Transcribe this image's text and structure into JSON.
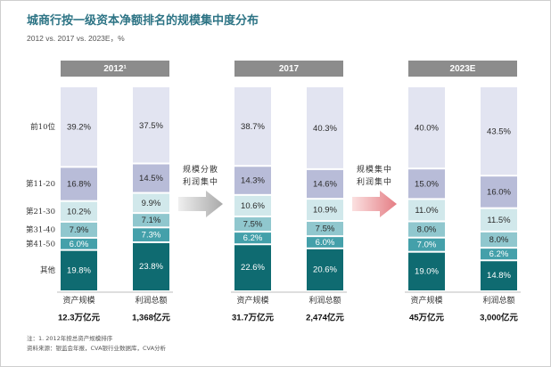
{
  "chart_data": {
    "type": "bar",
    "stacked": true,
    "title": "城商行按一级资本净额排名的规模集中度分布",
    "subtitle": "2012 vs. 2017 vs. 2023E，%",
    "unit": "%",
    "ylim": [
      0,
      100
    ],
    "grid": false,
    "groups": [
      "2012¹",
      "2017",
      "2023E"
    ],
    "categories": [
      "资产规模",
      "利润总额",
      "资产规模",
      "利润总额",
      "资产规模",
      "利润总额"
    ],
    "category_totals": [
      "12.3万亿元",
      "1,368亿元",
      "31.7万亿元",
      "2,474亿元",
      "45万亿元",
      "3,000亿元"
    ],
    "series": [
      {
        "name": "前10位",
        "values": [
          39.2,
          37.5,
          38.7,
          40.3,
          40.0,
          43.5
        ]
      },
      {
        "name": "第11-20",
        "values": [
          16.8,
          14.5,
          14.3,
          14.6,
          15.0,
          16.0
        ]
      },
      {
        "name": "第21-30",
        "values": [
          10.2,
          9.9,
          10.6,
          10.9,
          11.0,
          11.5
        ]
      },
      {
        "name": "第31-40",
        "values": [
          7.9,
          7.1,
          7.5,
          7.5,
          8.0,
          8.0
        ]
      },
      {
        "name": "第41-50",
        "values": [
          6.0,
          7.3,
          6.2,
          6.0,
          7.0,
          6.2
        ]
      },
      {
        "name": "其他",
        "values": [
          19.8,
          23.8,
          22.6,
          20.6,
          19.0,
          14.8
        ]
      }
    ],
    "annotations": [
      {
        "lines": [
          "规模分散",
          "利润集中"
        ],
        "arrow_colors": [
          "#efefef",
          "#a9a9a9"
        ]
      },
      {
        "lines": [
          "规模集中",
          "利润集中"
        ],
        "arrow_colors": [
          "#fbe1e1",
          "#e47d84"
        ]
      }
    ]
  },
  "footnotes": [
    "注：1. 2012年按总资产规模排序",
    "资料来源：银监会年报，CVA银行业数据库，CVA分析"
  ],
  "colors": {
    "title": "#2d7485",
    "header_bg": "#8c8c8c",
    "baseline": "#a6a6a6",
    "frame": "#cfcfcf",
    "segments": [
      "#e2e4f1",
      "#b8bcd8",
      "#d1e8eb",
      "#90c7ce",
      "#44a0aa",
      "#0f6b71"
    ],
    "segment_text": [
      "#2b2b2b",
      "#2b2b2b",
      "#2b2b2b",
      "#2b2b2b",
      "#ffffff",
      "#ffffff"
    ]
  }
}
